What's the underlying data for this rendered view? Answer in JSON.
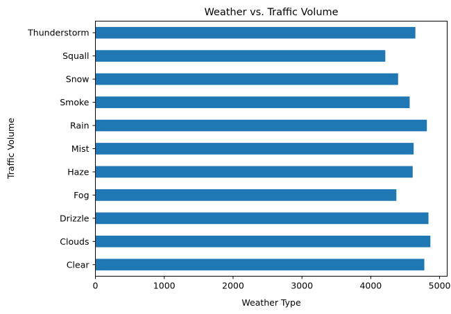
{
  "chart_data": {
    "type": "bar",
    "orientation": "horizontal",
    "title": "Weather vs. Traffic Volume",
    "xlabel": "Weather Type",
    "ylabel": "Traffic Volume",
    "categories": [
      "Clear",
      "Clouds",
      "Drizzle",
      "Fog",
      "Haze",
      "Mist",
      "Rain",
      "Smoke",
      "Snow",
      "Squall",
      "Thunderstorm"
    ],
    "values": [
      4778,
      4866,
      4838,
      4372,
      4609,
      4623,
      4815,
      4565,
      4397,
      4211,
      4648
    ],
    "xlim": [
      0,
      5110
    ],
    "xticks": [
      0,
      1000,
      2000,
      3000,
      4000,
      5000
    ],
    "grid": false,
    "legend": "none",
    "bar_color": "#1f77b4"
  }
}
